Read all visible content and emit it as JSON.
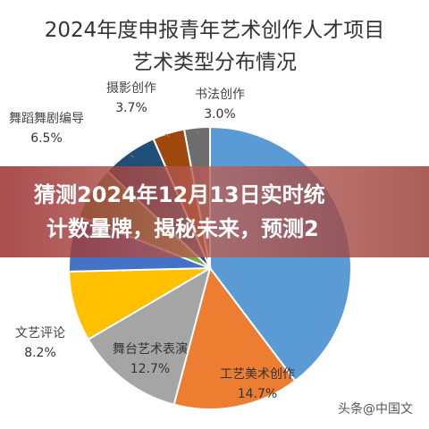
{
  "chart_data": {
    "type": "pie",
    "title_lines": [
      "2024年度申报青年艺术创作人才项目",
      "艺术类型分布情况"
    ],
    "slices": [
      {
        "label": "书法创作",
        "value": 3.0,
        "display": "3.0%",
        "color": "#6d6d6d"
      },
      {
        "label": "",
        "value": 40.5,
        "display": "",
        "color": "#5b9bd5"
      },
      {
        "label": "工艺美术创作",
        "value": 14.7,
        "display": "14.7%",
        "color": "#ed7d31"
      },
      {
        "label": "舞台艺术表演",
        "value": 12.7,
        "display": "12.7%",
        "color": "#a5a5a5"
      },
      {
        "label": "文艺评论",
        "value": 8.2,
        "display": "8.2%",
        "color": "#ffc000"
      },
      {
        "label": "",
        "value": 6.5,
        "display": "",
        "color": "#4472c4"
      },
      {
        "label": "",
        "value": 6.2,
        "display": "",
        "color": "#70ad47"
      },
      {
        "label": "舞蹈舞剧编导",
        "value": 6.5,
        "display": "6.5%",
        "color": "#1f4e79"
      },
      {
        "label": "摄影创作",
        "value": 3.7,
        "display": "3.7%",
        "color": "#9e480e"
      }
    ]
  },
  "banner": {
    "line1": "猜测2024年12月13日实时统",
    "line2": "计数量牌，揭秘未来，预测2"
  },
  "watermark": "头条@中国文"
}
